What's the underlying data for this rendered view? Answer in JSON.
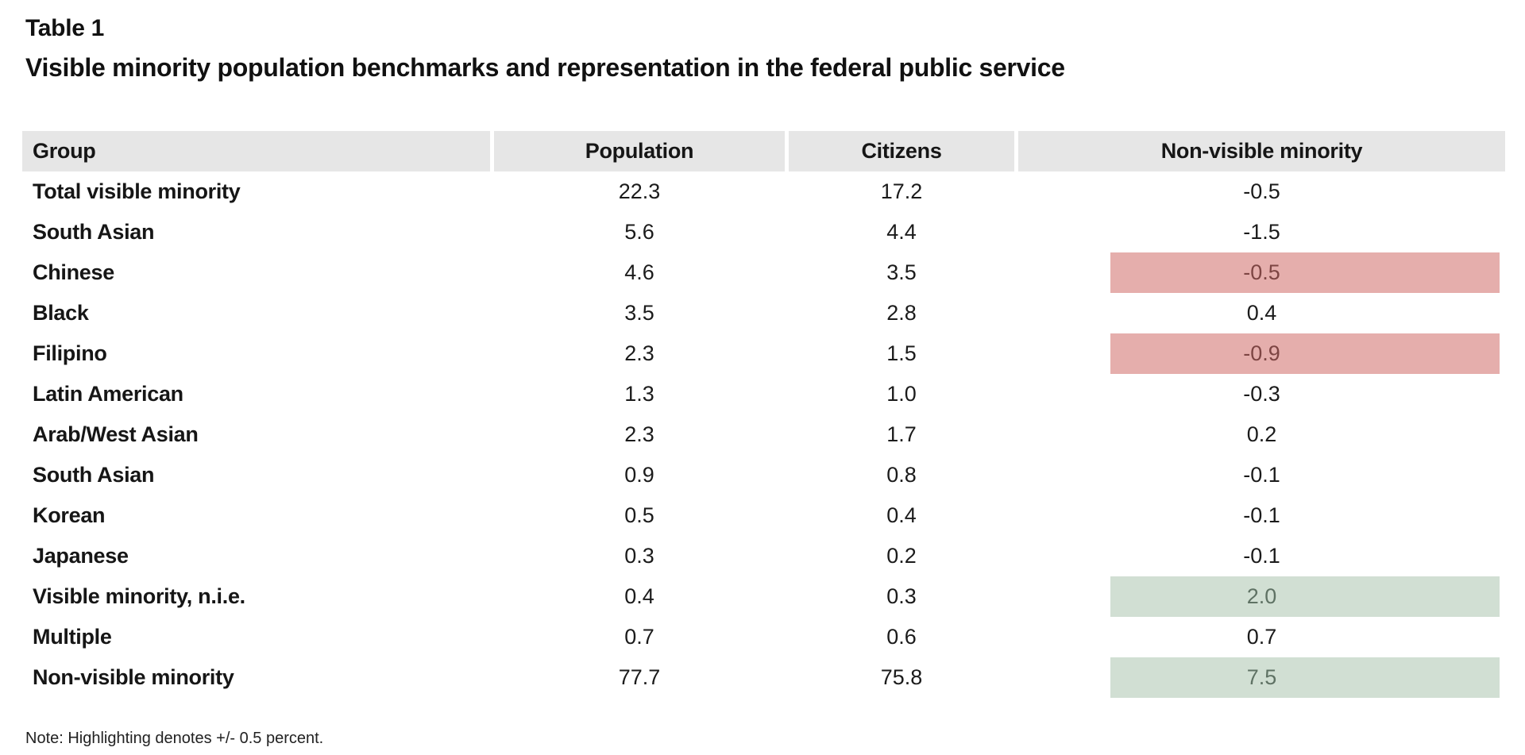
{
  "page": {
    "table_label": "Table 1",
    "title": "Visible minority population benchmarks and representation in the federal public service",
    "note": "Note: Highlighting denotes +/- 0.5 percent."
  },
  "colors": {
    "header_bg": "#e6e6e6",
    "highlight_negative": "#e5aeac",
    "highlight_negative_text": "#7d4543",
    "highlight_positive": "#d1dfd3",
    "highlight_positive_text": "#5f7264",
    "body_text": "#161616"
  },
  "chart_data": {
    "type": "table",
    "title": "Table 1",
    "subtitle": "Visible minority population benchmarks and representation in the federal public service",
    "columns": [
      "Group",
      "Population",
      "Citizens",
      "Non-visible minority"
    ],
    "rows": [
      {
        "group": "Total visible minority",
        "population": "22.3",
        "citizens": "17.2",
        "nvm": "-0.5",
        "highlight": "none"
      },
      {
        "group": "South Asian",
        "population": "5.6",
        "citizens": "4.4",
        "nvm": "-1.5",
        "highlight": "none"
      },
      {
        "group": "Chinese",
        "population": "4.6",
        "citizens": "3.5",
        "nvm": "-0.5",
        "highlight": "red"
      },
      {
        "group": "Black",
        "population": "3.5",
        "citizens": "2.8",
        "nvm": "0.4",
        "highlight": "none"
      },
      {
        "group": "Filipino",
        "population": "2.3",
        "citizens": "1.5",
        "nvm": "-0.9",
        "highlight": "red"
      },
      {
        "group": "Latin American",
        "population": "1.3",
        "citizens": "1.0",
        "nvm": "-0.3",
        "highlight": "none"
      },
      {
        "group": "Arab/West Asian",
        "population": "2.3",
        "citizens": "1.7",
        "nvm": "0.2",
        "highlight": "none"
      },
      {
        "group": "South Asian",
        "population": "0.9",
        "citizens": "0.8",
        "nvm": "-0.1",
        "highlight": "none"
      },
      {
        "group": "Korean",
        "population": "0.5",
        "citizens": "0.4",
        "nvm": "-0.1",
        "highlight": "none"
      },
      {
        "group": "Japanese",
        "population": "0.3",
        "citizens": "0.2",
        "nvm": "-0.1",
        "highlight": "none"
      },
      {
        "group": "Visible minority, n.i.e.",
        "population": "0.4",
        "citizens": "0.3",
        "nvm": "2.0",
        "highlight": "green"
      },
      {
        "group": "Multiple",
        "population": "0.7",
        "citizens": "0.6",
        "nvm": "0.7",
        "highlight": "none"
      },
      {
        "group": "Non-visible minority",
        "population": "77.7",
        "citizens": "75.8",
        "nvm": "7.5",
        "highlight": "green"
      }
    ],
    "note": "Note: Highlighting denotes +/- 0.5 percent."
  }
}
